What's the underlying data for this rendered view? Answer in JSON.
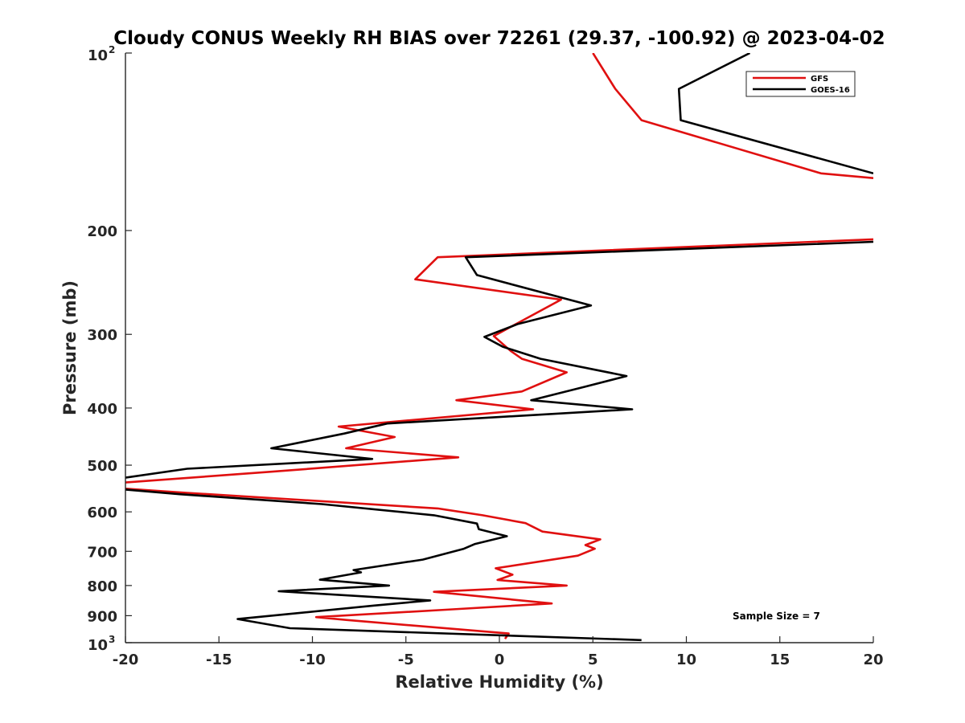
{
  "chart_data": {
    "type": "line",
    "title": "Cloudy CONUS Weekly RH BIAS over 72261 (29.37, -100.92) @ 2023-04-02",
    "xlabel": "Relative Humidity (%)",
    "ylabel": "Pressure (mb)",
    "xlim": [
      -20,
      20
    ],
    "ylim": [
      100,
      1000
    ],
    "yscale": "log",
    "yreversed": true,
    "xticks": [
      -20,
      -15,
      -10,
      -5,
      0,
      5,
      10,
      15,
      20
    ],
    "yticks": [
      {
        "value": 100,
        "label": "10",
        "sup": "2"
      },
      {
        "value": 200,
        "label": "200"
      },
      {
        "value": 300,
        "label": "300"
      },
      {
        "value": 400,
        "label": "400"
      },
      {
        "value": 500,
        "label": "500"
      },
      {
        "value": 600,
        "label": "600"
      },
      {
        "value": 700,
        "label": "700"
      },
      {
        "value": 800,
        "label": "800"
      },
      {
        "value": 900,
        "label": "900"
      },
      {
        "value": 1000,
        "label": "10",
        "sup": "3"
      }
    ],
    "grid": false,
    "legend": "top-right",
    "annotation": "Sample Size = 7",
    "series": [
      {
        "name": "GFS",
        "color": "#e01010",
        "points": [
          [
            5.0,
            100
          ],
          [
            6.2,
            115
          ],
          [
            7.6,
            130
          ],
          [
            17.2,
            160
          ],
          [
            20.0,
            163
          ],
          [
            null,
            null
          ],
          [
            20.0,
            207
          ],
          [
            -3.3,
            222
          ],
          [
            -4.5,
            242
          ],
          [
            3.3,
            262
          ],
          [
            -0.3,
            302
          ],
          [
            0.6,
            320
          ],
          [
            1.2,
            330
          ],
          [
            3.6,
            348
          ],
          [
            1.2,
            375
          ],
          [
            -2.3,
            388
          ],
          [
            1.8,
            402
          ],
          [
            -8.6,
            430
          ],
          [
            -5.6,
            448
          ],
          [
            -8.2,
            468
          ],
          [
            -2.2,
            485
          ],
          [
            -12.2,
            513
          ],
          [
            -20.0,
            535
          ],
          [
            null,
            null
          ],
          [
            -20.0,
            548
          ],
          [
            -16.7,
            557
          ],
          [
            -3.3,
            592
          ],
          [
            -0.9,
            608
          ],
          [
            1.4,
            627
          ],
          [
            2.3,
            648
          ],
          [
            5.4,
            668
          ],
          [
            4.6,
            683
          ],
          [
            5.1,
            693
          ],
          [
            4.2,
            712
          ],
          [
            -0.2,
            748
          ],
          [
            0.7,
            767
          ],
          [
            -0.1,
            783
          ],
          [
            3.6,
            800
          ],
          [
            -3.5,
            820
          ],
          [
            2.8,
            858
          ],
          [
            -2.5,
            878
          ],
          [
            -9.8,
            905
          ],
          [
            -8.2,
            915
          ],
          [
            0.5,
            965
          ],
          [
            0.3,
            985
          ]
        ]
      },
      {
        "name": "GOES-16",
        "color": "#000000",
        "points": [
          [
            13.4,
            100
          ],
          [
            9.6,
            115
          ],
          [
            9.7,
            130
          ],
          [
            20.0,
            160
          ],
          [
            null,
            null
          ],
          [
            20.0,
            209
          ],
          [
            -1.8,
            222
          ],
          [
            -1.2,
            238
          ],
          [
            4.9,
            268
          ],
          [
            1.0,
            288
          ],
          [
            -0.8,
            303
          ],
          [
            0.2,
            315
          ],
          [
            2.2,
            330
          ],
          [
            6.8,
            353
          ],
          [
            4.6,
            368
          ],
          [
            1.7,
            388
          ],
          [
            7.1,
            402
          ],
          [
            -6.0,
            425
          ],
          [
            -8.3,
            442
          ],
          [
            -12.2,
            468
          ],
          [
            -6.8,
            488
          ],
          [
            -16.7,
            507
          ],
          [
            -20.0,
            525
          ],
          [
            null,
            null
          ],
          [
            -20.0,
            550
          ],
          [
            -17.1,
            560
          ],
          [
            -9.5,
            582
          ],
          [
            -3.5,
            608
          ],
          [
            -1.2,
            628
          ],
          [
            -1.1,
            642
          ],
          [
            0.4,
            660
          ],
          [
            -1.3,
            680
          ],
          [
            -1.9,
            693
          ],
          [
            -4.1,
            723
          ],
          [
            -7.8,
            753
          ],
          [
            -7.4,
            760
          ],
          [
            -9.6,
            782
          ],
          [
            -5.9,
            800
          ],
          [
            -11.8,
            818
          ],
          [
            -3.7,
            848
          ],
          [
            -6.7,
            865
          ],
          [
            -14.0,
            912
          ],
          [
            -11.2,
            945
          ],
          [
            7.6,
            990
          ]
        ]
      }
    ]
  }
}
